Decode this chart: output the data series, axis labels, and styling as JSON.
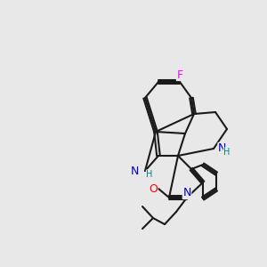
{
  "bg": "#e8e8e8",
  "bc": "#1a1a1a",
  "nc": "#0000cc",
  "oc": "#ff0000",
  "fc": "#ff00ff",
  "hc": "#008080",
  "lw": 1.5,
  "lw2": 1.2
}
